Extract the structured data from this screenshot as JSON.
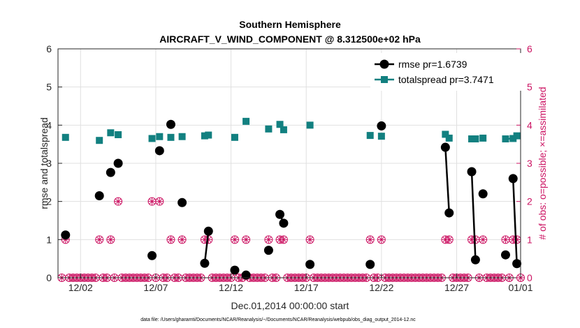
{
  "chart_data": {
    "type": "line",
    "title": "Southern Hemisphere",
    "subtitle": "AIRCRAFT_V_WIND_COMPONENT @ 8.312500e+02 hPa",
    "xlabel": "Dec.01,2014 00:00:00 start",
    "ylabel_left": "rmse and totalspread",
    "ylabel_right": "# of obs: o=possible; ×=assimilated",
    "footer": "data file: /Users/gharamti/Documents/NCAR/Reanalysis/~/Documents/NCAR/Reanalysis/webpub/obs_diag_output_2014-12.nc",
    "x_range": [
      0.5,
      31.25
    ],
    "x_ticks": [
      {
        "value": 2,
        "label": "12/02"
      },
      {
        "value": 7,
        "label": "12/07"
      },
      {
        "value": 12,
        "label": "12/12"
      },
      {
        "value": 17,
        "label": "12/17"
      },
      {
        "value": 22,
        "label": "12/22"
      },
      {
        "value": 27,
        "label": "12/27"
      },
      {
        "value": 32,
        "label": "01/01"
      }
    ],
    "ylim_left": [
      0,
      6
    ],
    "ylim_right": [
      0,
      6
    ],
    "y_ticks": [
      "0",
      "1",
      "2",
      "3",
      "4",
      "5",
      "6"
    ],
    "grid": true,
    "legend_position": "top-right",
    "colors": {
      "rmse": "#000000",
      "totalspread": "#128080",
      "obs": "#cc1463",
      "grid": "#e0e0e0"
    },
    "series": [
      {
        "name": "rmse",
        "legend": "rmse pr=1.6739",
        "points": [
          [
            1,
            1.12
          ],
          [
            3.25,
            2.15
          ],
          [
            4,
            2.76
          ],
          [
            4.5,
            3.0
          ],
          [
            6.75,
            0.58
          ],
          [
            7.25,
            3.33
          ],
          [
            8,
            4.02
          ],
          [
            8.75,
            1.97
          ],
          [
            10.25,
            0.38
          ],
          [
            10.5,
            1.22
          ],
          [
            12.25,
            0.2
          ],
          [
            13,
            0.07
          ],
          [
            14.5,
            0.72
          ],
          [
            15.25,
            1.66
          ],
          [
            15.5,
            1.43
          ],
          [
            17.25,
            0.35
          ],
          [
            21.25,
            0.35
          ],
          [
            22,
            3.98
          ],
          [
            26.25,
            3.42
          ],
          [
            26.5,
            1.7
          ],
          [
            28,
            2.78
          ],
          [
            28.25,
            0.47
          ],
          [
            28.75,
            2.2
          ],
          [
            30.25,
            0.6
          ],
          [
            30.75,
            2.6
          ],
          [
            31,
            0.37
          ]
        ],
        "connected_segments": [
          [
            [
              10.25,
              0.38
            ],
            [
              10.5,
              1.22
            ]
          ],
          [
            [
              15.25,
              1.66
            ],
            [
              15.5,
              1.43
            ]
          ],
          [
            [
              26.25,
              3.42
            ],
            [
              26.5,
              1.7
            ]
          ],
          [
            [
              28,
              2.78
            ],
            [
              28.25,
              0.47
            ]
          ],
          [
            [
              30.75,
              2.6
            ],
            [
              31,
              0.37
            ]
          ]
        ]
      },
      {
        "name": "totalspread",
        "legend": "totalspread pr=3.7471",
        "points": [
          [
            1,
            3.68
          ],
          [
            3.25,
            3.6
          ],
          [
            4,
            3.8
          ],
          [
            4.5,
            3.75
          ],
          [
            6.75,
            3.65
          ],
          [
            7.25,
            3.7
          ],
          [
            8,
            3.68
          ],
          [
            8.75,
            3.7
          ],
          [
            10.25,
            3.72
          ],
          [
            10.5,
            3.74
          ],
          [
            12.25,
            3.68
          ],
          [
            13,
            4.1
          ],
          [
            14.5,
            3.9
          ],
          [
            15.25,
            4.02
          ],
          [
            15.5,
            3.88
          ],
          [
            17.25,
            4.0
          ],
          [
            21.25,
            3.73
          ],
          [
            22,
            3.71
          ],
          [
            26.25,
            3.76
          ],
          [
            26.5,
            3.66
          ],
          [
            28,
            3.64
          ],
          [
            28.25,
            3.64
          ],
          [
            28.75,
            3.66
          ],
          [
            30.25,
            3.64
          ],
          [
            30.75,
            3.65
          ],
          [
            31,
            3.72
          ]
        ],
        "connected_segments": [
          [
            [
              10.25,
              3.72
            ],
            [
              10.5,
              3.74
            ]
          ],
          [
            [
              15.25,
              4.02
            ],
            [
              15.5,
              3.88
            ]
          ],
          [
            [
              28,
              3.64
            ],
            [
              28.25,
              3.64
            ]
          ],
          [
            [
              30.25,
              3.64
            ],
            [
              30.75,
              3.65
            ]
          ],
          [
            [
              30.75,
              3.65
            ],
            [
              31,
              3.72
            ]
          ]
        ]
      },
      {
        "name": "obs_possible",
        "axis": "right",
        "points_nonzero": [
          [
            1,
            1
          ],
          [
            3.25,
            1
          ],
          [
            4,
            1
          ],
          [
            4.5,
            2
          ],
          [
            6.75,
            2
          ],
          [
            7.25,
            2
          ],
          [
            8,
            1
          ],
          [
            8.75,
            1
          ],
          [
            10.25,
            1
          ],
          [
            10.5,
            1
          ],
          [
            12.25,
            1
          ],
          [
            13,
            1
          ],
          [
            14.5,
            1
          ],
          [
            15.25,
            1
          ],
          [
            15.5,
            1
          ],
          [
            17.25,
            1
          ],
          [
            21.25,
            1
          ],
          [
            22,
            1
          ],
          [
            26.25,
            1
          ],
          [
            26.5,
            1
          ],
          [
            28,
            1
          ],
          [
            28.25,
            1
          ],
          [
            28.75,
            1
          ],
          [
            30.25,
            1
          ],
          [
            30.75,
            1
          ],
          [
            31,
            1
          ]
        ],
        "zero_start": 0.75,
        "zero_end": 31.25,
        "zero_step": 0.25
      },
      {
        "name": "obs_assimilated",
        "axis": "right",
        "same_as": "obs_possible"
      }
    ]
  }
}
